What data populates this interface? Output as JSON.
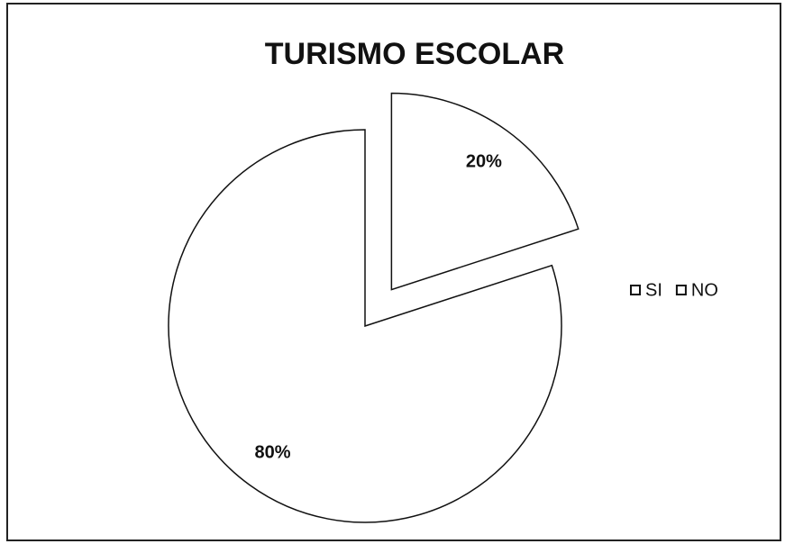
{
  "chart_data": {
    "type": "pie",
    "title": "TURISMO ESCOLAR",
    "categories": [
      "SI",
      "NO"
    ],
    "values": [
      20,
      80
    ],
    "value_labels": [
      "20%",
      "80%"
    ],
    "colors": [
      "#ffffff",
      "#ffffff"
    ],
    "explode": [
      true,
      false
    ],
    "legend": "right"
  }
}
